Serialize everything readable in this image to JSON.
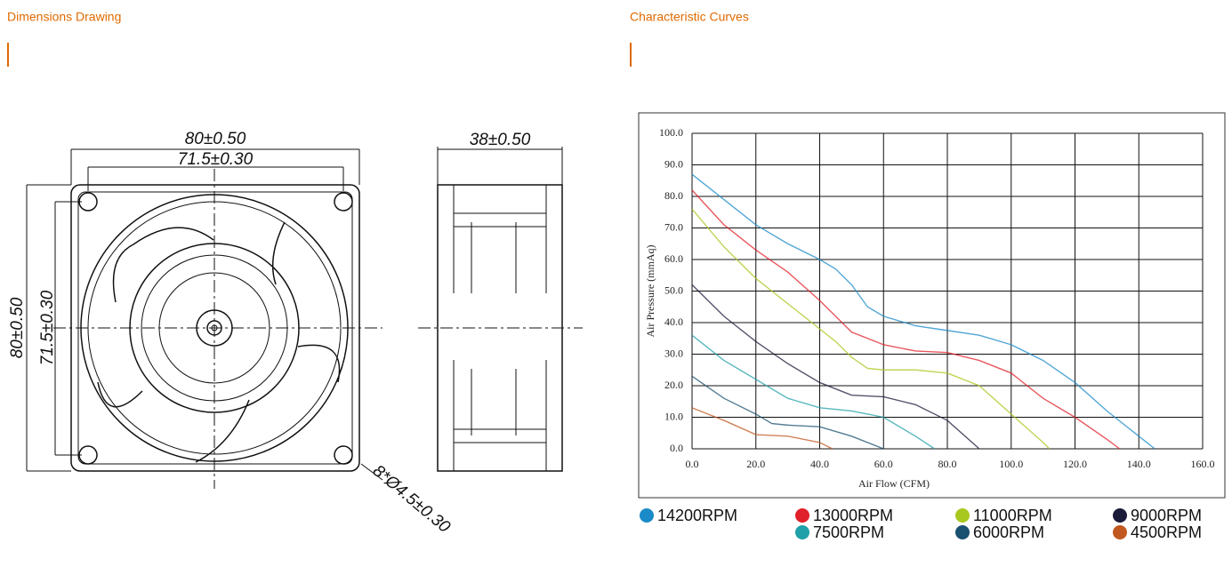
{
  "headings": {
    "left": "Dimensions Drawing",
    "right": "Characteristic Curves"
  },
  "drawing": {
    "labels": [
      "80±0.50",
      "71.5±0.30",
      "80±0.50",
      "71.5±0.30",
      "38±0.50",
      "8*Ø4.5±0.30"
    ]
  },
  "chart_data": {
    "type": "line",
    "xlabel": "Air Flow (CFM)",
    "ylabel": "Air Pressure (mmAq)",
    "grid": true,
    "xlim": [
      0,
      160
    ],
    "ylim": [
      0,
      100
    ],
    "xticks": [
      {
        "value": 0,
        "label": "0.0"
      },
      {
        "value": 20,
        "label": "20.0"
      },
      {
        "value": 40,
        "label": "40.0"
      },
      {
        "value": 60,
        "label": "60.0"
      },
      {
        "value": 80,
        "label": "80.0"
      },
      {
        "value": 100,
        "label": "100.0"
      },
      {
        "value": 120,
        "label": "120.0"
      },
      {
        "value": 140,
        "label": "140.0"
      },
      {
        "value": 160,
        "label": "160.0"
      }
    ],
    "yticks": [
      {
        "value": 0,
        "label": "0.0"
      },
      {
        "value": 10,
        "label": "10.0"
      },
      {
        "value": 20,
        "label": "20.0"
      },
      {
        "value": 30,
        "label": "30.0"
      },
      {
        "value": 40,
        "label": "40.0"
      },
      {
        "value": 50,
        "label": "50.0"
      },
      {
        "value": 60,
        "label": "60.0"
      },
      {
        "value": 70,
        "label": "70.0"
      },
      {
        "value": 80,
        "label": "80.0"
      },
      {
        "value": 90,
        "label": "90.0"
      },
      {
        "value": 100,
        "label": "100.0"
      }
    ],
    "series": [
      {
        "name": "14200RPM",
        "color": "#1a8ac8",
        "x": [
          0,
          10,
          20,
          30,
          40,
          45,
          50,
          55,
          60,
          70,
          80,
          90,
          100,
          110,
          120,
          130,
          140,
          145
        ],
        "values": [
          87,
          79,
          71,
          65,
          60,
          57,
          52,
          45,
          42,
          39,
          37.5,
          36,
          33,
          28,
          21,
          12,
          4,
          0
        ]
      },
      {
        "name": "13000RPM",
        "color": "#e0202a",
        "x": [
          0,
          10,
          20,
          30,
          40,
          45,
          50,
          60,
          70,
          80,
          90,
          100,
          110,
          120,
          130,
          134
        ],
        "values": [
          82,
          71,
          63,
          56,
          47,
          42,
          37,
          33,
          31,
          30.5,
          28,
          24,
          16,
          10,
          3,
          0
        ]
      },
      {
        "name": "11000RPM",
        "color": "#a8c820",
        "x": [
          0,
          10,
          20,
          30,
          40,
          45,
          50,
          55,
          60,
          70,
          80,
          90,
          100,
          110,
          112
        ],
        "values": [
          76,
          64,
          54,
          46,
          38,
          34,
          29,
          25.5,
          25,
          25,
          24,
          20,
          11,
          2,
          0
        ]
      },
      {
        "name": "9000RPM",
        "color": "#1a1a3a",
        "x": [
          0,
          10,
          20,
          30,
          40,
          50,
          60,
          70,
          80,
          90
        ],
        "values": [
          52,
          42,
          34,
          27,
          21,
          17,
          16.5,
          14,
          9,
          0
        ]
      },
      {
        "name": "7500RPM",
        "color": "#20a0a8",
        "x": [
          0,
          10,
          20,
          30,
          40,
          50,
          55,
          60,
          70,
          76
        ],
        "values": [
          36,
          28,
          22,
          16,
          13,
          12,
          11,
          10,
          4,
          0
        ]
      },
      {
        "name": "6000RPM",
        "color": "#1a5070",
        "x": [
          0,
          10,
          20,
          25,
          30,
          40,
          50,
          60
        ],
        "values": [
          23,
          16,
          11,
          8,
          7.5,
          7,
          4,
          0
        ]
      },
      {
        "name": "4500RPM",
        "color": "#c05820",
        "x": [
          0,
          10,
          20,
          30,
          40,
          44
        ],
        "values": [
          13,
          9,
          4.5,
          4,
          2,
          0
        ]
      }
    ]
  }
}
